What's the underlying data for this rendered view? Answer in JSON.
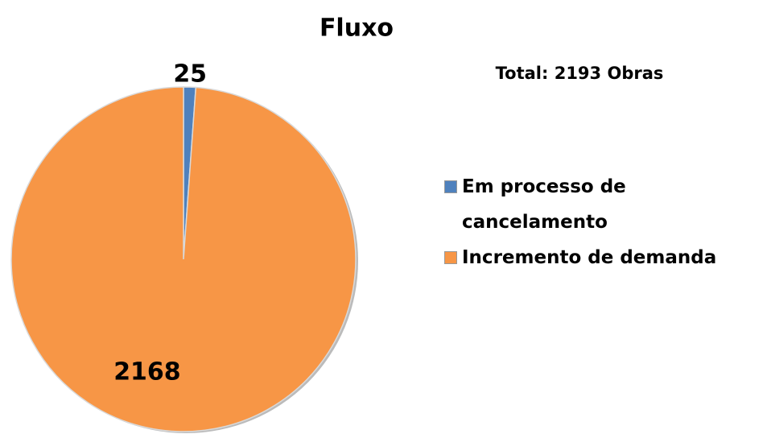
{
  "chart_data": {
    "type": "pie",
    "title": "Fluxo",
    "annotation": "Total: 2193 Obras",
    "categories": [
      "Em processo de cancelamento",
      "Incremento de demanda"
    ],
    "values": [
      25,
      2168
    ],
    "colors": [
      "#4f81bd",
      "#f79646"
    ]
  }
}
